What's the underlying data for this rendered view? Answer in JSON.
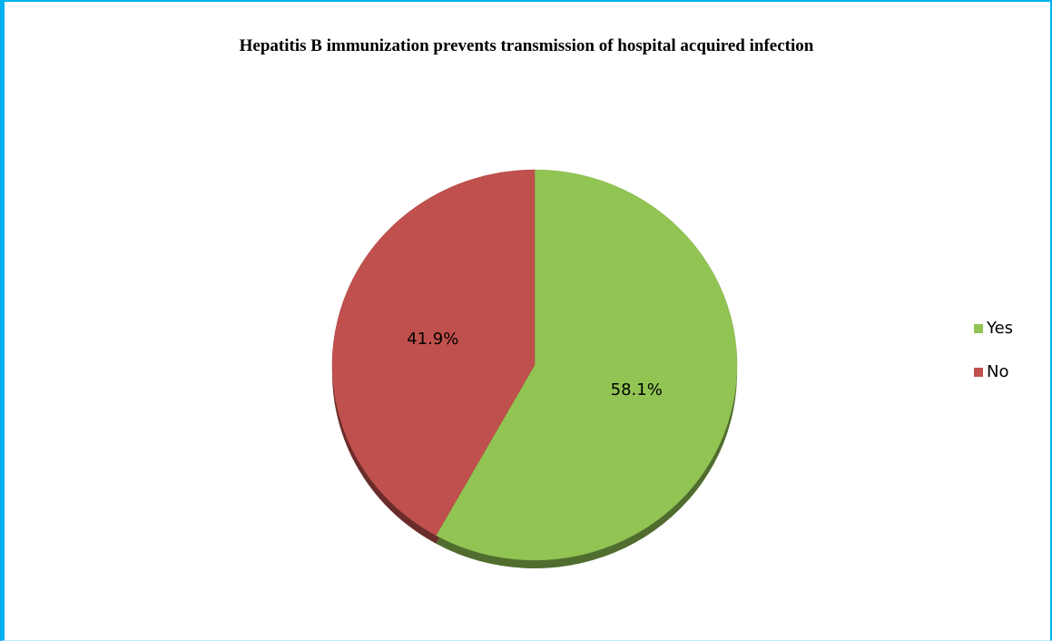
{
  "chart_data": {
    "type": "pie",
    "title": "Hepatitis B immunization prevents transmission of hospital acquired infection",
    "categories": [
      "Yes",
      "No"
    ],
    "values": [
      58.1,
      41.9
    ],
    "value_labels": [
      "58.1%",
      "41.9%"
    ],
    "colors": [
      "#92c454",
      "#c0504d"
    ],
    "legend": "right"
  }
}
